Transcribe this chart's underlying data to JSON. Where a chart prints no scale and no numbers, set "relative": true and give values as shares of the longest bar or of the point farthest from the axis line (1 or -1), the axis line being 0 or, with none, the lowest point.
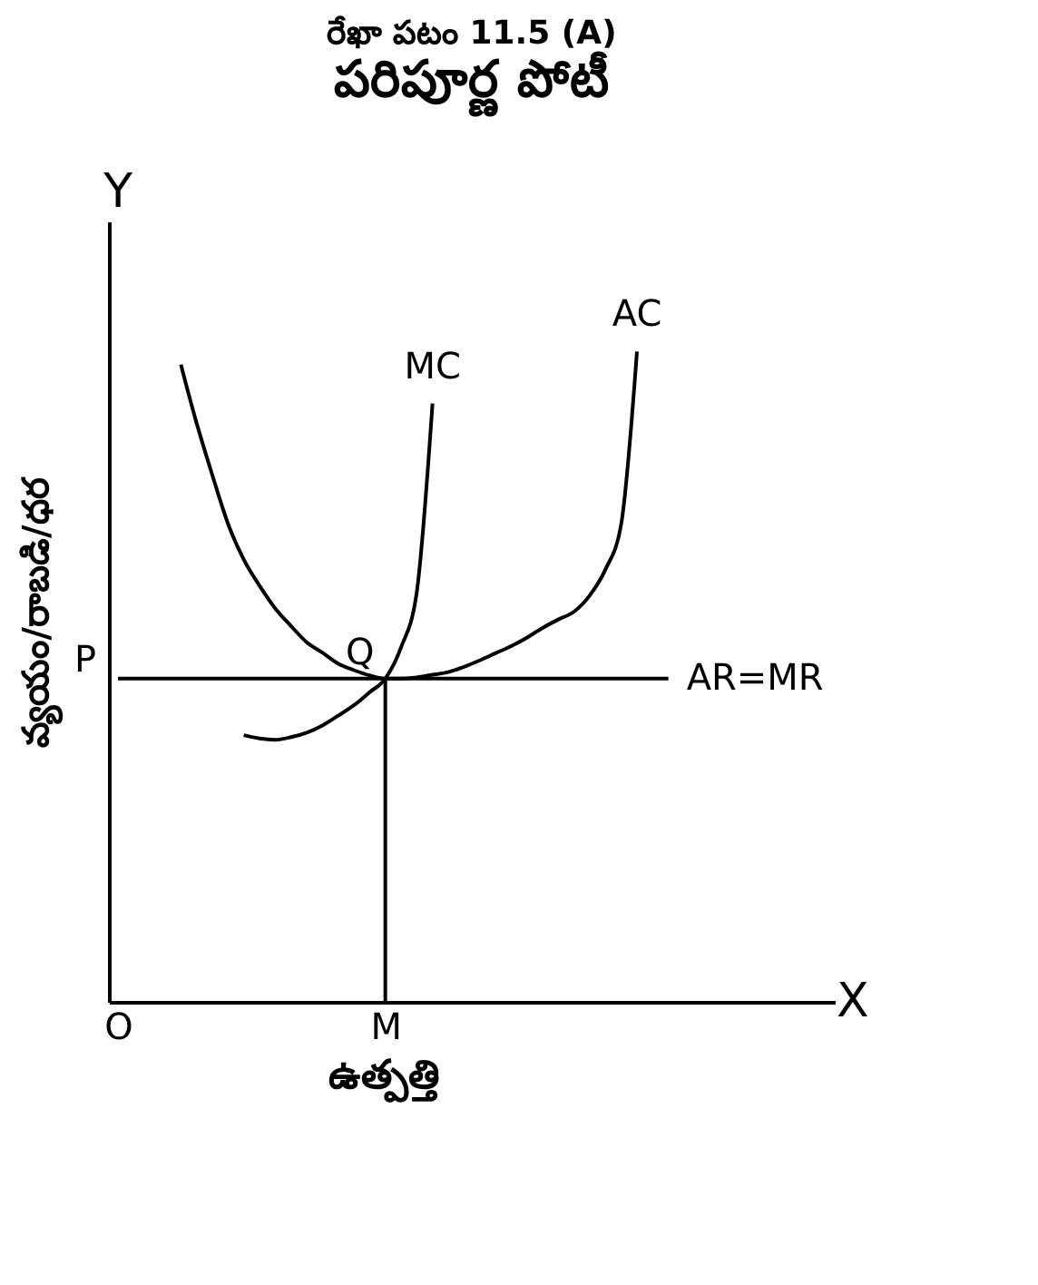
{
  "chart_data": {
    "type": "line",
    "title": "రేఖా పటం 11.5 (A)",
    "subtitle": "పరిపూర్ణ పోటీ",
    "xlabel": "ఉత్పత్తి",
    "ylabel": "వ్యయం/రాబడి/ధర",
    "relative": true,
    "grid": false,
    "marker": "none",
    "line_style": "solid",
    "categories": [
      "O",
      null,
      null,
      null,
      null,
      null,
      null,
      null,
      null,
      null,
      null,
      null,
      null,
      null,
      null,
      null,
      null,
      "M",
      null,
      null,
      null,
      null,
      null,
      null,
      null,
      null,
      null,
      null,
      null,
      null,
      null,
      null,
      null,
      null,
      null,
      null,
      null
    ],
    "series": [
      {
        "name": "MC",
        "color": "#000000",
        "values": [
          null,
          null,
          null,
          null,
          null,
          null,
          null,
          null,
          0.41,
          0.405,
          0.403,
          0.407,
          0.414,
          0.425,
          0.44,
          0.456,
          0.476,
          0.497,
          0.545,
          0.63,
          0.92,
          null,
          null,
          null,
          null,
          null,
          null,
          null,
          null,
          null,
          null,
          null,
          null,
          null,
          null,
          null,
          null
        ]
      },
      {
        "name": "AC",
        "color": "#000000",
        "values": [
          null,
          null,
          null,
          null,
          0.98,
          0.89,
          0.81,
          0.735,
          0.68,
          0.64,
          0.605,
          0.578,
          0.553,
          0.537,
          0.52,
          0.51,
          0.502,
          0.497,
          0.497,
          0.499,
          0.503,
          0.507,
          0.515,
          0.525,
          0.536,
          0.547,
          0.56,
          0.575,
          0.588,
          0.6,
          0.625,
          0.665,
          0.735,
          1.0,
          null,
          null,
          null
        ]
      },
      {
        "name": "AR=MR",
        "color": "#000000",
        "values": [
          0.497,
          0.497,
          0.497,
          0.497,
          0.497,
          0.497,
          0.497,
          0.497,
          0.497,
          0.497,
          0.497,
          0.497,
          0.497,
          0.497,
          0.497,
          0.497,
          0.497,
          0.497,
          0.497,
          0.497,
          0.497,
          0.497,
          0.497,
          0.497,
          0.497,
          0.497,
          0.497,
          0.497,
          0.497,
          0.497,
          0.497,
          0.497,
          0.497,
          0.497,
          0.497,
          0.497,
          null
        ]
      },
      {
        "type": "bar",
        "color": "#000000",
        "values": [
          null,
          null,
          null,
          null,
          null,
          null,
          null,
          null,
          null,
          null,
          null,
          null,
          null,
          null,
          null,
          null,
          null,
          0.497,
          null,
          null,
          null,
          null,
          null,
          null,
          null,
          null,
          null,
          null,
          null,
          null,
          null,
          null,
          null,
          null,
          null,
          null,
          null
        ]
      }
    ],
    "annotations": [
      "P",
      {
        "text": "Q",
        "x": "M",
        "y": 0.497
      },
      "X",
      "Y"
    ]
  }
}
